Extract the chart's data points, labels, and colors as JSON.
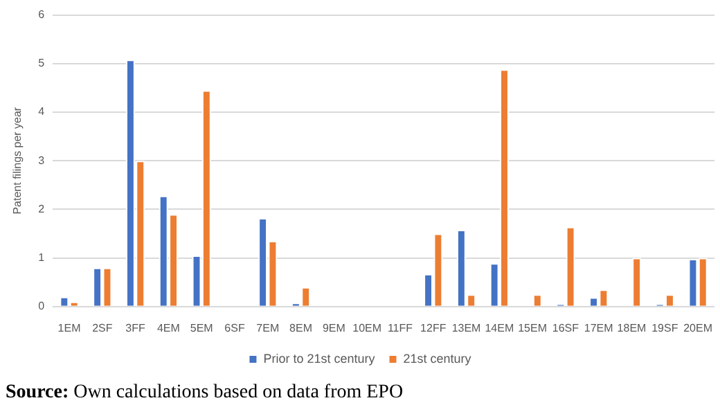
{
  "chart_data": {
    "type": "bar",
    "ylabel": "Patent filings per year",
    "categories": [
      "1EM",
      "2SF",
      "3FF",
      "4EM",
      "5EM",
      "6SF",
      "7EM",
      "8EM",
      "9EM",
      "10EM",
      "11FF",
      "12FF",
      "13EM",
      "14EM",
      "15EM",
      "16SF",
      "17EM",
      "18EM",
      "19SF",
      "20EM"
    ],
    "series": [
      {
        "name": "Prior to 21st century",
        "color": "#4472c4",
        "values": [
          0.2,
          0.8,
          5.08,
          2.28,
          1.05,
          0,
          1.82,
          0.08,
          0,
          0,
          0,
          0.67,
          1.58,
          0.89,
          0,
          0.05,
          0.19,
          0,
          0.05,
          0.98
        ]
      },
      {
        "name": "21st century",
        "color": "#ed7d31",
        "values": [
          0.1,
          0.8,
          3.0,
          1.9,
          4.45,
          0,
          1.35,
          0.4,
          0,
          0,
          0,
          1.5,
          0.25,
          4.88,
          0.25,
          1.64,
          0.35,
          1.0,
          0.25,
          1.0
        ]
      }
    ],
    "ylim": [
      0,
      6
    ],
    "yticks": [
      0,
      1,
      2,
      3,
      4,
      5,
      6
    ],
    "grid": "y",
    "legend": "bottom",
    "annotations": [
      "Source: Own calculations based on data from EPO"
    ]
  }
}
